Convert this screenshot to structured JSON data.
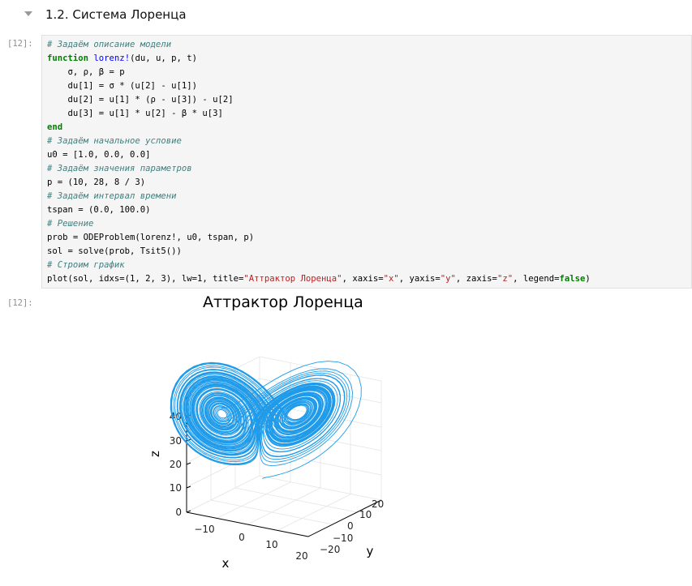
{
  "heading": {
    "title": "1.2. Система Лоренца"
  },
  "input_prompt": "[12]:",
  "output_prompt": "[12]:",
  "code": {
    "c1": "# Задаём описание модели",
    "l2_kw": "function",
    "l2_fn": "lorenz!",
    "l2_rest": "(du, u, p, t)",
    "l3": "    σ, ρ, β = p",
    "l4": "    du[1] = σ * (u[2] - u[1])",
    "l5": "    du[2] = u[1] * (ρ - u[3]) - u[2]",
    "l6": "    du[3] = u[1] * u[2] - β * u[3]",
    "l7_kw": "end",
    "c8": "# Задаём начальное условие",
    "l9": "u0 = [1.0, 0.0, 0.0]",
    "c10": "# Задаём значения параметров",
    "l11": "p = (10, 28, 8 / 3)",
    "c12": "# Задаём интервал времени",
    "l13": "tspan = (0.0, 100.0)",
    "c14": "# Решение",
    "l15": "prob = ODEProblem(lorenz!, u0, tspan, p)",
    "l16": "sol = solve(prob, Tsit5())",
    "c17": "# Строим график",
    "l18a": "plot(sol, idxs=(1, 2, 3), lw=1, title=",
    "l18s1": "\"Аттрактор Лоренца\"",
    "l18b": ", xaxis=",
    "l18s2": "\"x\"",
    "l18c": ", yaxis=",
    "l18s3": "\"y\"",
    "l18d": ", zaxis=",
    "l18s4": "\"z\"",
    "l18e": ", legend=",
    "l18f": "false",
    "l18g": ")"
  },
  "chart_data": {
    "type": "line",
    "title": "Аттрактор Лоренца",
    "xlabel": "x",
    "ylabel": "y",
    "zlabel": "z",
    "x_ticks": [
      "−10",
      "0",
      "10",
      "20"
    ],
    "y_ticks": [
      "−20",
      "−10",
      "0",
      "10",
      "20"
    ],
    "z_ticks": [
      "0",
      "10",
      "20",
      "30",
      "40"
    ],
    "zlim": [
      0,
      50
    ],
    "series_color": "#1f9bea",
    "legend": false,
    "grid": true
  }
}
